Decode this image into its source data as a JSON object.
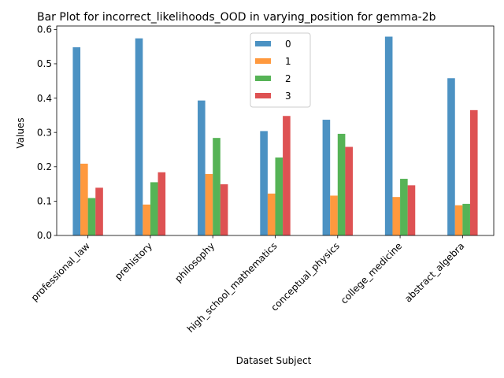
{
  "chart_data": {
    "type": "bar",
    "title": "Bar Plot for incorrect_likelihoods_OOD in varying_position for gemma-2b",
    "xlabel": "Dataset Subject",
    "ylabel": "Values",
    "ylim": [
      0,
      0.61
    ],
    "yticks": [
      0.0,
      0.1,
      0.2,
      0.3,
      0.4,
      0.5,
      0.6
    ],
    "ytick_labels": [
      "0.0",
      "0.1",
      "0.2",
      "0.3",
      "0.4",
      "0.5",
      "0.6"
    ],
    "grid": false,
    "legend_position": "top-center",
    "categories": [
      "professional_law",
      "prehistory",
      "philosophy",
      "high_school_mathematics",
      "conceptual_physics",
      "college_medicine",
      "abstract_algebra"
    ],
    "series": [
      {
        "name": "0",
        "color": "#1f77b4",
        "values": [
          0.548,
          0.574,
          0.393,
          0.304,
          0.337,
          0.579,
          0.458
        ]
      },
      {
        "name": "1",
        "color": "#ff7f0e",
        "values": [
          0.209,
          0.09,
          0.179,
          0.122,
          0.116,
          0.112,
          0.088
        ]
      },
      {
        "name": "2",
        "color": "#2ca02c",
        "values": [
          0.109,
          0.155,
          0.284,
          0.227,
          0.296,
          0.165,
          0.092
        ]
      },
      {
        "name": "3",
        "color": "#d62728",
        "values": [
          0.139,
          0.184,
          0.149,
          0.348,
          0.258,
          0.146,
          0.365
        ]
      }
    ]
  }
}
